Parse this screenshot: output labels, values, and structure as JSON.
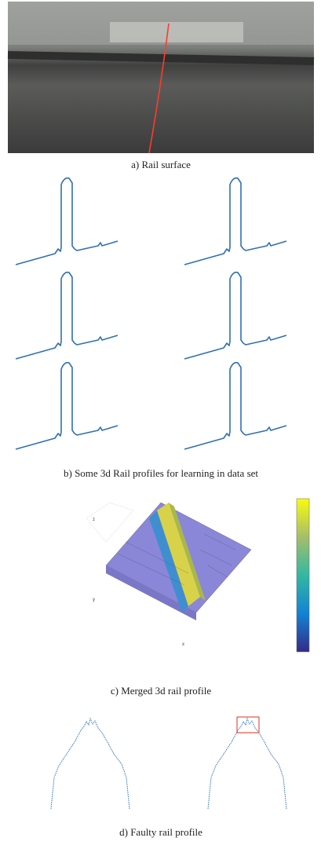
{
  "captions": {
    "a": "a)  Rail surface",
    "b": "b)  Some 3d Rail profiles for learning in data set",
    "c": "c)  Merged 3d rail profile",
    "d": "d)  Faulty rail profile"
  },
  "plot_axes": {
    "x": "x",
    "y": "y",
    "z": "z"
  }
}
